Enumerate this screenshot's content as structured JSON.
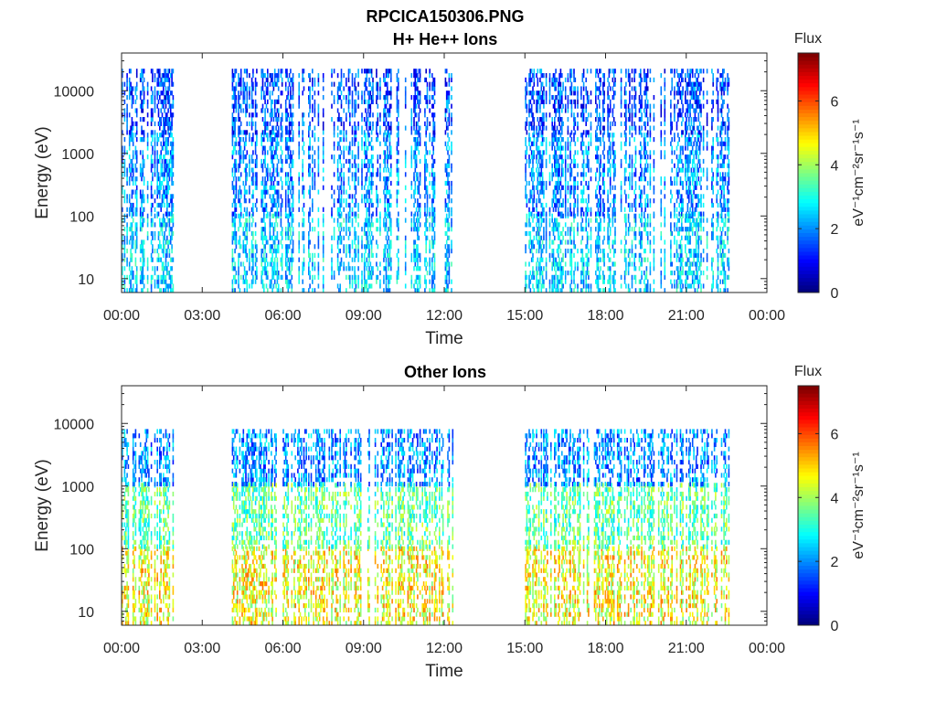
{
  "figure_title": "RPCICA150306.PNG",
  "chart_data": [
    {
      "type": "heatmap",
      "title": "H+ He++ Ions",
      "xlabel": "Time",
      "ylabel": "Energy (eV)",
      "x_range": [
        "00:00",
        "24:00"
      ],
      "x_ticks": [
        "00:00",
        "03:00",
        "06:00",
        "09:00",
        "12:00",
        "15:00",
        "18:00",
        "21:00",
        "00:00"
      ],
      "y_scale": "log",
      "y_range": [
        6,
        40000
      ],
      "y_ticks": [
        "10",
        "100",
        "1000",
        "10000"
      ],
      "colorbar": {
        "label": "Flux",
        "unit": "eV⁻¹cm⁻²sr⁻¹s⁻¹",
        "range": [
          0,
          7.5
        ],
        "ticks": [
          "0",
          "2",
          "4",
          "6"
        ],
        "colormap": "jet"
      },
      "data_coverage_hours": [
        [
          0.0,
          1.9
        ],
        [
          4.1,
          12.3
        ],
        [
          15.0,
          22.6
        ]
      ],
      "dominant_flux_by_energy": [
        {
          "energy_range_eV": [
            6,
            100
          ],
          "flux_range": [
            1.5,
            3.5
          ]
        },
        {
          "energy_range_eV": [
            100,
            2000
          ],
          "flux_range": [
            1.0,
            3.0
          ]
        },
        {
          "energy_range_eV": [
            2000,
            20000
          ],
          "flux_range": [
            0.5,
            2.5
          ]
        }
      ]
    },
    {
      "type": "heatmap",
      "title": "Other Ions",
      "xlabel": "Time",
      "ylabel": "Energy (eV)",
      "x_range": [
        "00:00",
        "24:00"
      ],
      "x_ticks": [
        "00:00",
        "03:00",
        "06:00",
        "09:00",
        "12:00",
        "15:00",
        "18:00",
        "21:00",
        "00:00"
      ],
      "y_scale": "log",
      "y_range": [
        6,
        40000
      ],
      "y_ticks": [
        "10",
        "100",
        "1000",
        "10000"
      ],
      "colorbar": {
        "label": "Flux",
        "unit": "eV⁻¹cm⁻²sr⁻¹s⁻¹",
        "range": [
          0,
          7.5
        ],
        "ticks": [
          "0",
          "2",
          "4",
          "6"
        ],
        "colormap": "jet"
      },
      "data_coverage_hours": [
        [
          0.0,
          1.9
        ],
        [
          4.1,
          12.3
        ],
        [
          15.0,
          22.6
        ]
      ],
      "dominant_flux_by_energy": [
        {
          "energy_range_eV": [
            6,
            100
          ],
          "flux_range": [
            3.5,
            5.8
          ]
        },
        {
          "energy_range_eV": [
            100,
            1000
          ],
          "flux_range": [
            2.5,
            4.5
          ]
        },
        {
          "energy_range_eV": [
            1000,
            8000
          ],
          "flux_range": [
            1.0,
            3.0
          ]
        }
      ]
    }
  ]
}
